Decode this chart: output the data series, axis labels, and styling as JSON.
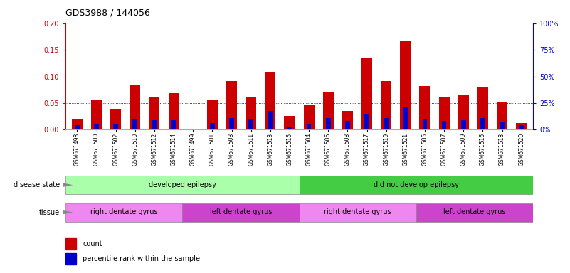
{
  "title": "GDS3988 / 144056",
  "samples": [
    "GSM671498",
    "GSM671500",
    "GSM671502",
    "GSM671510",
    "GSM671512",
    "GSM671514",
    "GSM671499",
    "GSM671501",
    "GSM671503",
    "GSM671511",
    "GSM671513",
    "GSM671515",
    "GSM671504",
    "GSM671506",
    "GSM671508",
    "GSM671517",
    "GSM671519",
    "GSM671521",
    "GSM671505",
    "GSM671507",
    "GSM671509",
    "GSM671516",
    "GSM671518",
    "GSM671520"
  ],
  "count_values": [
    0.021,
    0.055,
    0.038,
    0.083,
    0.06,
    0.068,
    0.0,
    0.055,
    0.092,
    0.062,
    0.109,
    0.026,
    0.047,
    0.07,
    0.035,
    0.136,
    0.091,
    0.168,
    0.082,
    0.062,
    0.065,
    0.08,
    0.053,
    0.012
  ],
  "percentile_values": [
    0.008,
    0.01,
    0.01,
    0.02,
    0.018,
    0.018,
    0.0,
    0.012,
    0.022,
    0.02,
    0.035,
    0.006,
    0.01,
    0.022,
    0.016,
    0.03,
    0.022,
    0.043,
    0.02,
    0.016,
    0.018,
    0.022,
    0.014,
    0.008
  ],
  "ylim": [
    0,
    0.2
  ],
  "y2lim": [
    0,
    100
  ],
  "yticks": [
    0,
    0.05,
    0.1,
    0.15,
    0.2
  ],
  "y2ticks": [
    0,
    25,
    50,
    75,
    100
  ],
  "bar_color": "#cc0000",
  "percentile_color": "#0000cc",
  "disease_state_groups": [
    {
      "label": "developed epilepsy",
      "start": 0,
      "end": 11,
      "color": "#aaffaa"
    },
    {
      "label": "did not develop epilepsy",
      "start": 12,
      "end": 23,
      "color": "#44cc44"
    }
  ],
  "tissue_groups": [
    {
      "label": "right dentate gyrus",
      "start": 0,
      "end": 5,
      "color": "#ee88ee"
    },
    {
      "label": "left dentate gyrus",
      "start": 6,
      "end": 11,
      "color": "#cc44cc"
    },
    {
      "label": "right dentate gyrus",
      "start": 12,
      "end": 17,
      "color": "#ee88ee"
    },
    {
      "label": "left dentate gyrus",
      "start": 18,
      "end": 23,
      "color": "#cc44cc"
    }
  ],
  "disease_state_label": "disease state",
  "tissue_label": "tissue",
  "legend_count_label": "count",
  "legend_percentile_label": "percentile rank within the sample",
  "bar_color_red": "#cc0000",
  "percentile_color_blue": "#0000cc",
  "left_tick_color": "#cc0000",
  "right_tick_color": "#0000cc"
}
